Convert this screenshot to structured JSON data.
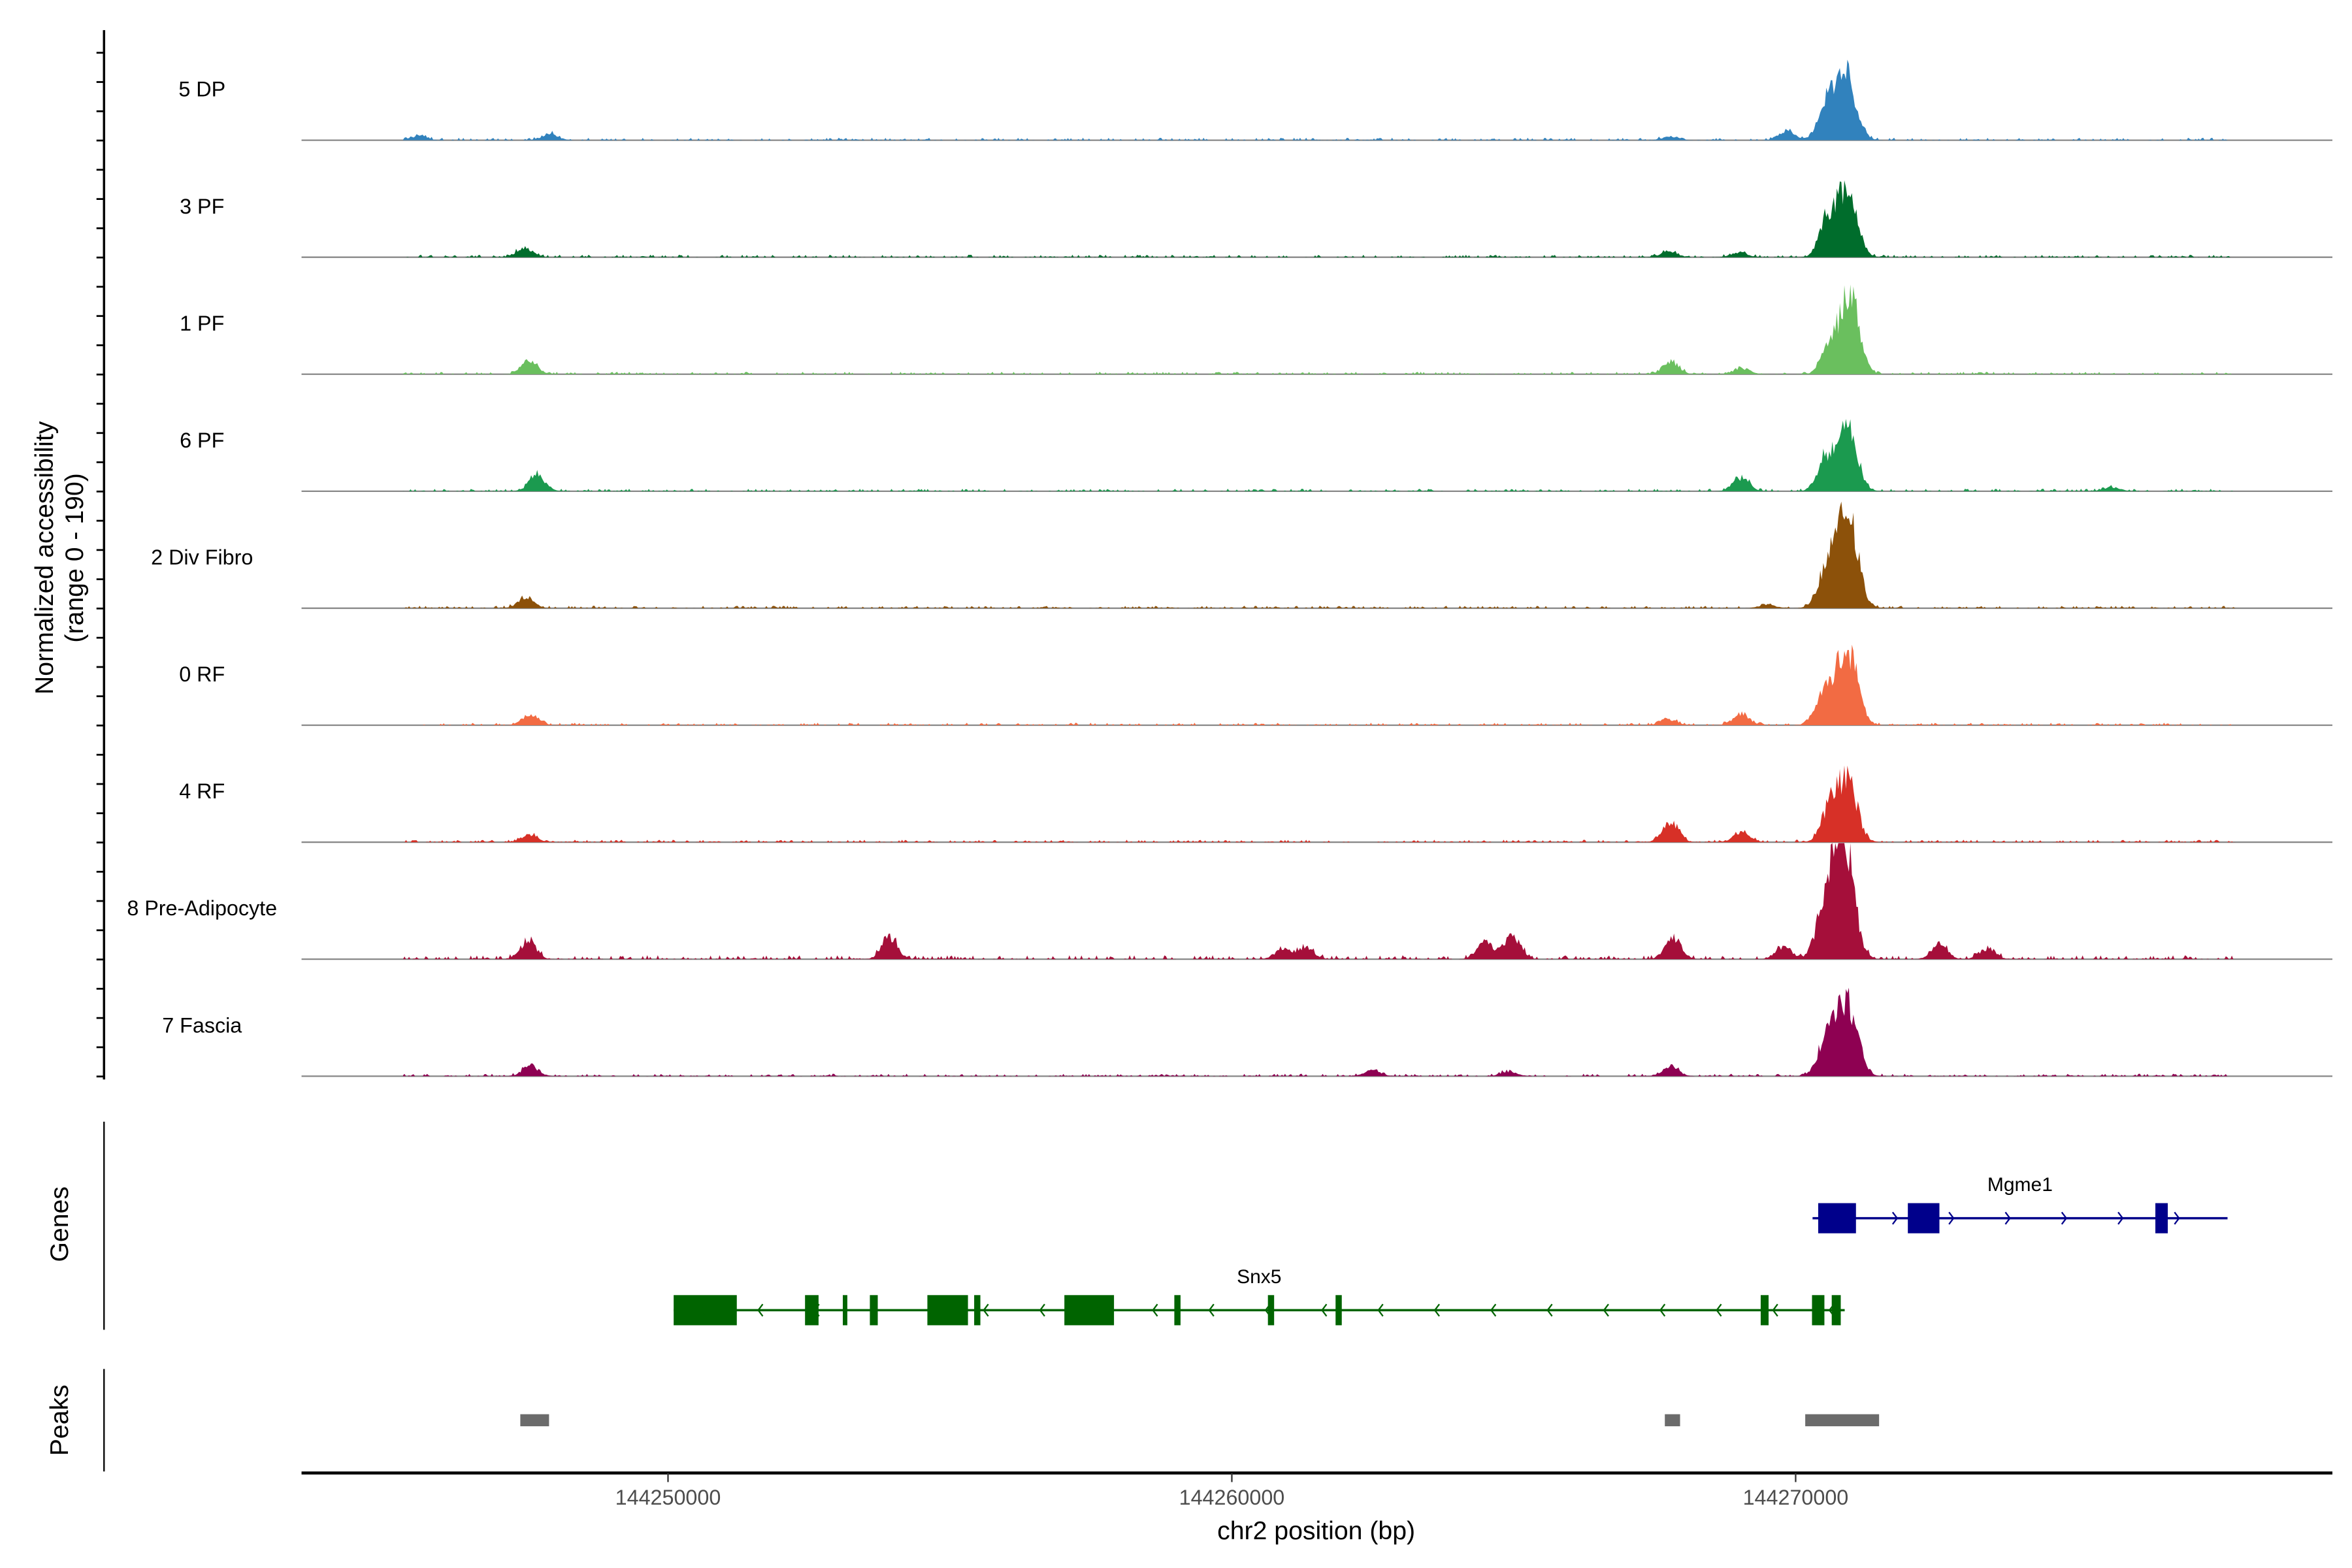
{
  "chart_data": {
    "type": "area",
    "title": "",
    "ylabel": "Normalized accessibility",
    "ylabel_range": "(range 0 - 190)",
    "ylim": [
      0,
      190
    ],
    "xlabel": "chr2 position (bp)",
    "xlim": [
      144243500,
      144279520
    ],
    "xticks": [
      144250000,
      144260000,
      144270000
    ],
    "xtick_labels": [
      "144250000",
      "144260000",
      "144270000"
    ],
    "grid": false,
    "tracks": [
      {
        "name": "5 DP",
        "color": "#3182bd",
        "peaks": [
          [
            144270909,
            101
          ],
          [
            144270588,
            62
          ],
          [
            144269840,
            15
          ],
          [
            144247900,
            10
          ],
          [
            144245580,
            7
          ],
          [
            144267780,
            6
          ]
        ]
      },
      {
        "name": "3 PF",
        "color": "#006d2c",
        "peaks": [
          [
            144270909,
            114
          ],
          [
            144270560,
            59
          ],
          [
            144247460,
            15
          ],
          [
            144267750,
            10
          ],
          [
            144269000,
            8
          ]
        ]
      },
      {
        "name": "1 PF",
        "color": "#6abf5e",
        "peaks": [
          [
            144270960,
            131
          ],
          [
            144270590,
            44
          ],
          [
            144247540,
            22
          ],
          [
            144267780,
            20
          ],
          [
            144269037,
            10
          ]
        ]
      },
      {
        "name": "6 PF",
        "color": "#1b9a4f",
        "peaks": [
          [
            144270909,
            109
          ],
          [
            144270510,
            49
          ],
          [
            144247680,
            27
          ],
          [
            144269037,
            22
          ],
          [
            144275600,
            7
          ]
        ]
      },
      {
        "name": "2 Div Fibro",
        "color": "#8c510a",
        "peaks": [
          [
            144270935,
            146
          ],
          [
            144270590,
            74
          ],
          [
            144247480,
            17
          ],
          [
            144269500,
            6
          ]
        ]
      },
      {
        "name": "0 RF",
        "color": "#f26b43",
        "peaks": [
          [
            144270935,
            116
          ],
          [
            144270560,
            62
          ],
          [
            144247560,
            17
          ],
          [
            144269037,
            20
          ],
          [
            144267750,
            10
          ]
        ]
      },
      {
        "name": "4 RF",
        "color": "#d73027",
        "peaks": [
          [
            144270909,
            106
          ],
          [
            144270588,
            49
          ],
          [
            144267780,
            35
          ],
          [
            144269037,
            17
          ],
          [
            144247540,
            12
          ]
        ]
      },
      {
        "name": "8 Pre-Adipocyte",
        "color": "#a50f3a",
        "peaks": [
          [
            144270880,
            158
          ],
          [
            144270720,
            99
          ],
          [
            144270450,
            49
          ],
          [
            144247520,
            30
          ],
          [
            144253930,
            35
          ],
          [
            144264970,
            40
          ],
          [
            144264490,
            30
          ],
          [
            144267830,
            35
          ],
          [
            144269800,
            20
          ],
          [
            144272550,
            25
          ],
          [
            144273400,
            18
          ],
          [
            144260900,
            15
          ],
          [
            144261300,
            20
          ]
        ]
      },
      {
        "name": "7 Fascia",
        "color": "#8e0152",
        "peaks": [
          [
            144270935,
            114
          ],
          [
            144270588,
            69
          ],
          [
            144247560,
            17
          ],
          [
            144267780,
            17
          ],
          [
            144262500,
            10
          ],
          [
            144264900,
            8
          ]
        ]
      }
    ],
    "genes": [
      {
        "name": "Mgme1",
        "color": "#00008b",
        "strand": "+",
        "start": 144270300,
        "end": 144277660,
        "exons": [
          [
            144270400,
            144271070
          ],
          [
            144271990,
            144272550
          ],
          [
            144276380,
            144276600
          ]
        ]
      },
      {
        "name": "Snx5",
        "color": "#006400",
        "strand": "-",
        "start": 144250100,
        "end": 144270870,
        "exons": [
          [
            144250100,
            144251220
          ],
          [
            144252430,
            144252670
          ],
          [
            144253100,
            144253180
          ],
          [
            144253580,
            144253720
          ],
          [
            144254600,
            144255320
          ],
          [
            144255430,
            144255540
          ],
          [
            144257030,
            144257910
          ],
          [
            144258980,
            144259090
          ],
          [
            144260640,
            144260750
          ],
          [
            144261840,
            144261950
          ],
          [
            144269380,
            144269520
          ],
          [
            144270290,
            144270510
          ],
          [
            144270640,
            144270800
          ]
        ]
      }
    ],
    "peak_regions": {
      "label": "Peaks",
      "color": "#6b6b6b",
      "regions": [
        [
          144247380,
          144247890
        ],
        [
          144267680,
          144267950
        ],
        [
          144270170,
          144271480
        ]
      ]
    },
    "panel_labels": {
      "genes": "Genes",
      "peaks": "Peaks"
    }
  }
}
